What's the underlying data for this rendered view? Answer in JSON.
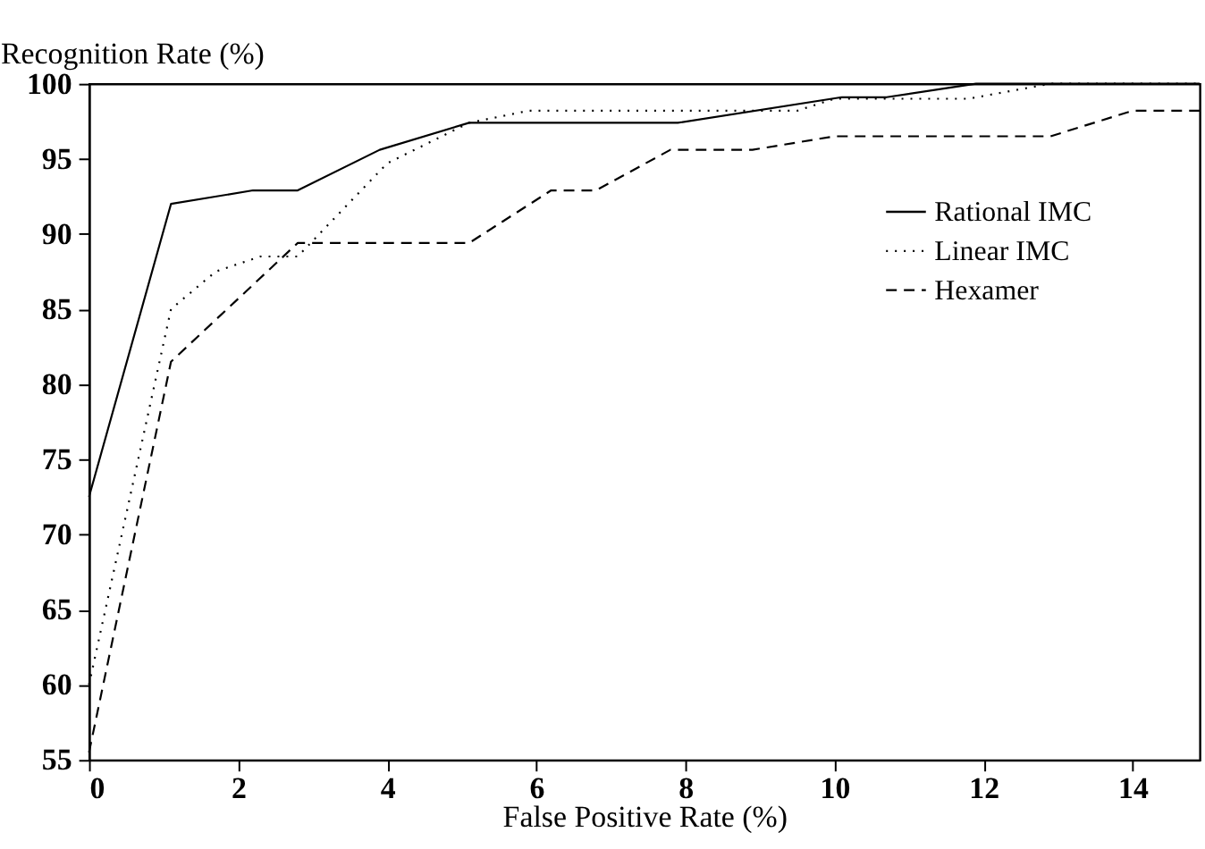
{
  "chart_data": {
    "type": "line",
    "xlabel": "False Positive Rate (%)",
    "ylabel": "Recognition Rate (%)",
    "xlim": [
      0,
      14.9
    ],
    "ylim": [
      55,
      100
    ],
    "xticks": [
      0,
      2,
      4,
      6,
      8,
      10,
      12,
      14
    ],
    "yticks": [
      55,
      60,
      65,
      70,
      75,
      80,
      85,
      90,
      95,
      100
    ],
    "grid": false,
    "legend": "top right",
    "marker": "none",
    "series": [
      {
        "name": "Rational IMC",
        "color": "#000000",
        "line_style": "solid",
        "x": [
          0,
          1.1,
          2.2,
          2.8,
          3.9,
          5.1,
          7.9,
          10.1,
          10.7,
          11.9,
          14.9
        ],
        "values": [
          72.5,
          92,
          92.9,
          92.9,
          95.6,
          97.4,
          97.4,
          99.1,
          99.1,
          100,
          100
        ]
      },
      {
        "name": "Linear IMC",
        "color": "#000000",
        "line_style": "dotted",
        "x": [
          0,
          1.1,
          1.7,
          2.3,
          2.8,
          4,
          5.1,
          5.9,
          9.5,
          10,
          11.8,
          12.9,
          14.9
        ],
        "values": [
          60,
          85,
          87.5,
          88.5,
          88.5,
          94.7,
          97.4,
          98.2,
          98.2,
          99,
          99,
          100,
          100
        ]
      },
      {
        "name": "Hexamer",
        "color": "#000000",
        "line_style": "dashed",
        "x": [
          0,
          1.1,
          2.8,
          5.1,
          6.2,
          6.8,
          7.8,
          8.9,
          10,
          12.9,
          14,
          14.9
        ],
        "values": [
          55.5,
          81.5,
          89.4,
          89.4,
          92.9,
          92.9,
          95.6,
          95.6,
          96.5,
          96.5,
          98.2,
          98.2
        ]
      }
    ]
  }
}
